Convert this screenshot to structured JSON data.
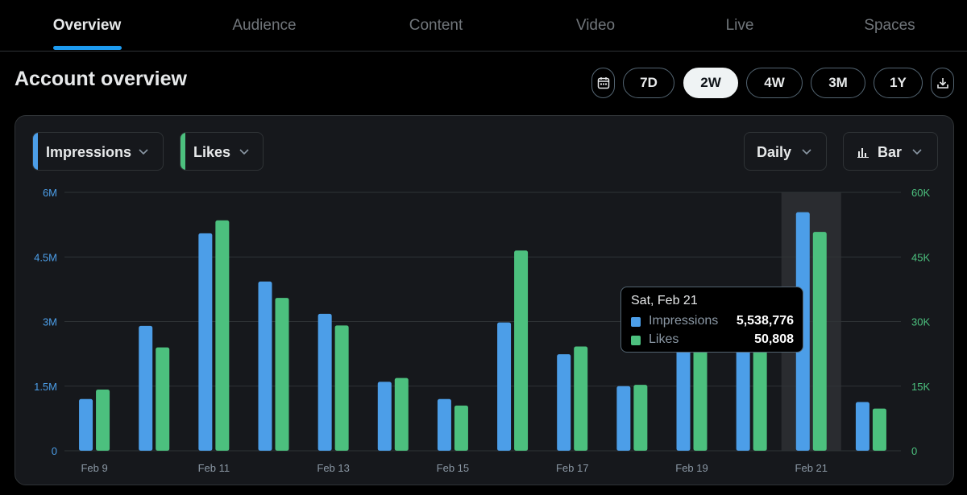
{
  "tabs": [
    {
      "label": "Overview",
      "active": true
    },
    {
      "label": "Audience",
      "active": false
    },
    {
      "label": "Content",
      "active": false
    },
    {
      "label": "Video",
      "active": false
    },
    {
      "label": "Live",
      "active": false
    },
    {
      "label": "Spaces",
      "active": false
    }
  ],
  "header": {
    "title": "Account overview"
  },
  "range": {
    "options": [
      "7D",
      "2W",
      "4W",
      "3M",
      "1Y"
    ],
    "selected": "2W",
    "calendar_icon": "calendar-icon",
    "download_icon": "download-icon"
  },
  "controls": {
    "metric1": "Impressions",
    "metric2": "Likes",
    "interval": "Daily",
    "chart_type": "Bar",
    "chart_type_icon": "bar-chart-icon"
  },
  "colors": {
    "accent": "#1d9bf0",
    "impressions": "#4c9ee8",
    "likes": "#4cc07e",
    "left_axis": "#4c9ee8",
    "right_axis": "#4cc07e"
  },
  "tooltip": {
    "date": "Sat, Feb 21",
    "rows": [
      {
        "label": "Impressions",
        "value": "5,538,776"
      },
      {
        "label": "Likes",
        "value": "50,808"
      }
    ]
  },
  "chart_data": {
    "type": "bar",
    "categories": [
      "Feb 9",
      "Feb 10",
      "Feb 11",
      "Feb 12",
      "Feb 13",
      "Feb 14",
      "Feb 15",
      "Feb 16",
      "Feb 17",
      "Feb 18",
      "Feb 19",
      "Feb 20",
      "Feb 21",
      "Feb 22"
    ],
    "x_tick_labels": [
      "Feb 9",
      "",
      "Feb 11",
      "",
      "Feb 13",
      "",
      "Feb 15",
      "",
      "Feb 17",
      "",
      "Feb 19",
      "",
      "Feb 21",
      ""
    ],
    "series": [
      {
        "name": "Impressions",
        "axis": "left",
        "values": [
          1200000,
          2900000,
          5050000,
          3930000,
          3180000,
          1600000,
          1200000,
          2980000,
          2240000,
          1500000,
          2800000,
          3800000,
          5538776,
          1130000
        ]
      },
      {
        "name": "Likes",
        "axis": "right",
        "values": [
          14200,
          24000,
          53500,
          35500,
          29100,
          16900,
          10500,
          46500,
          24200,
          15300,
          25000,
          27000,
          50808,
          9800
        ]
      }
    ],
    "left_axis": {
      "ticks": [
        "0",
        "1.5M",
        "3M",
        "4.5M",
        "6M"
      ],
      "range": [
        0,
        6000000
      ]
    },
    "right_axis": {
      "ticks": [
        "0",
        "15K",
        "30K",
        "45K",
        "60K"
      ],
      "range": [
        0,
        60000
      ]
    },
    "highlighted_category": "Feb 21",
    "grid": true
  }
}
